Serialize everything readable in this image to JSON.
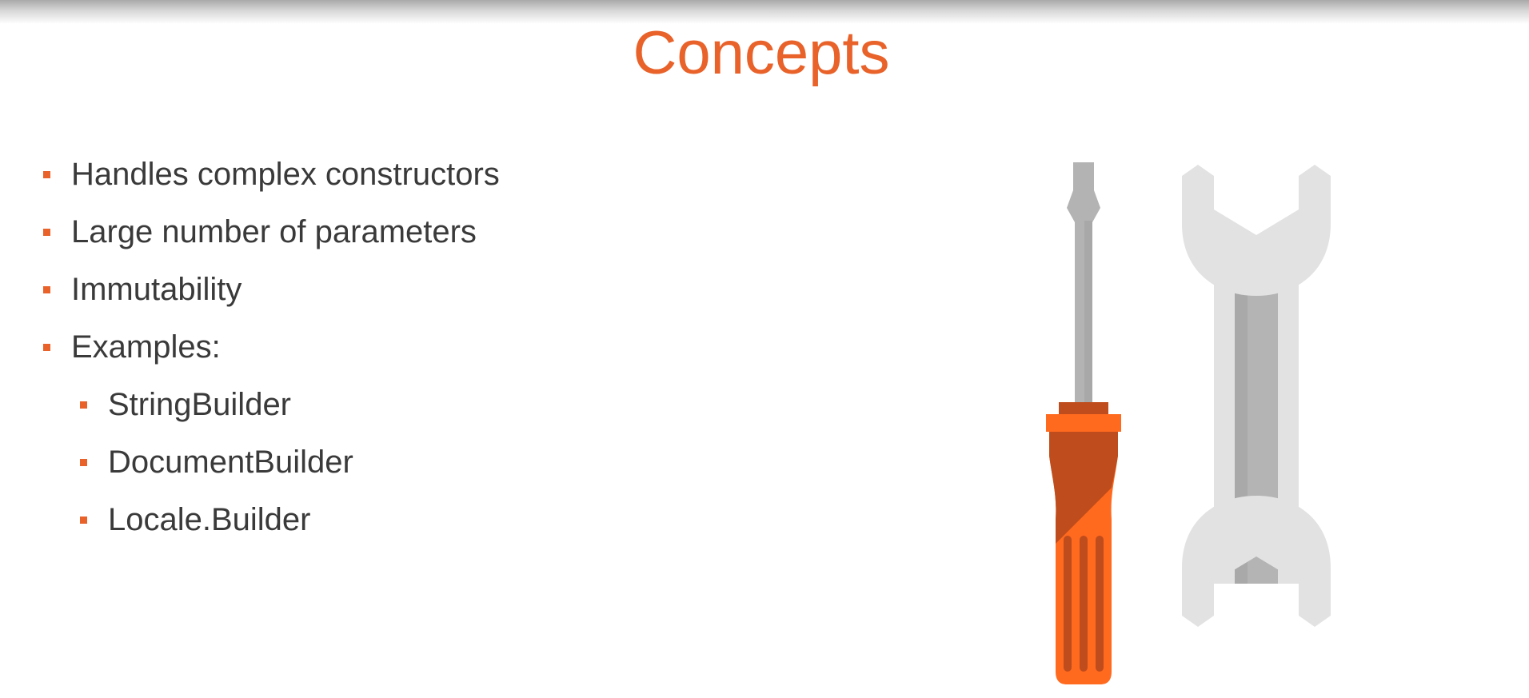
{
  "slide": {
    "title": "Concepts",
    "bullets": [
      "Handles complex constructors",
      "Large number of parameters",
      "Immutability",
      "Examples:"
    ],
    "sub_bullets": [
      "StringBuilder",
      "DocumentBuilder",
      "Locale.Builder"
    ],
    "illustration": {
      "items": [
        "screwdriver-icon",
        "wrench-icon"
      ],
      "colors": {
        "accent": "#e8622a",
        "handle_light": "#ff6a1f",
        "handle_dark": "#bf4c1c",
        "metal": "#b4b4b4",
        "wrench": "#e2e2e2",
        "text": "#3a3a3a"
      }
    }
  }
}
